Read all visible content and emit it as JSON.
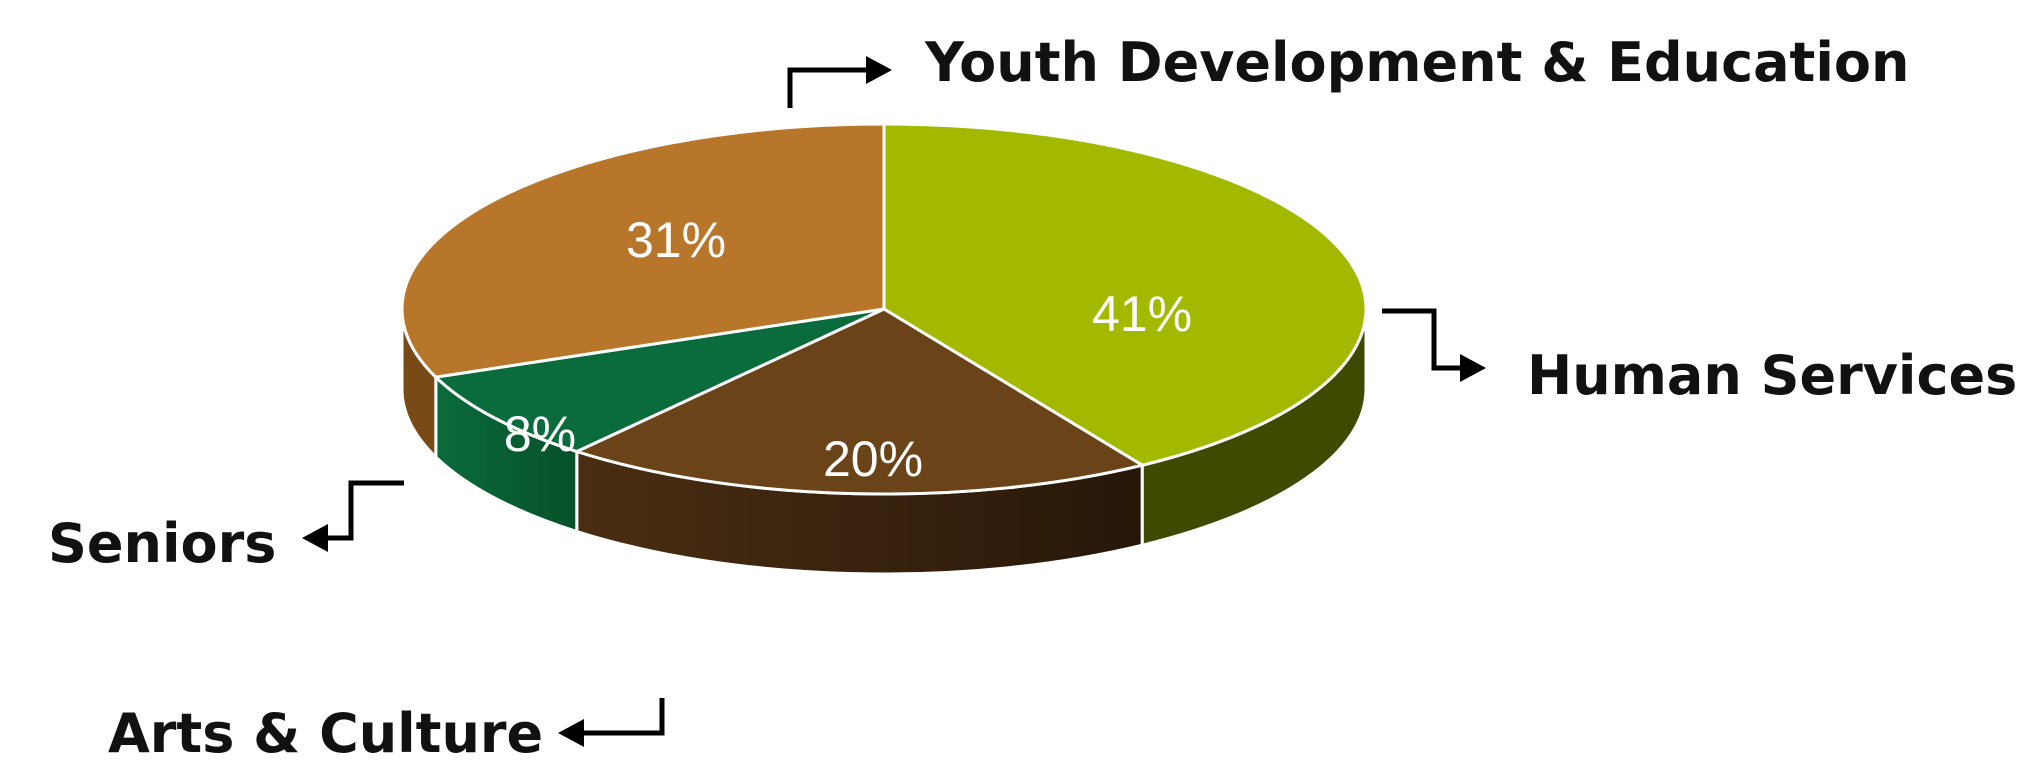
{
  "chart_data": {
    "type": "pie",
    "title": "",
    "categories": [
      "Human Services",
      "Arts & Culture",
      "Seniors",
      "Youth Development & Education"
    ],
    "values": [
      41,
      20,
      8,
      31
    ],
    "value_labels": [
      "41%",
      "20%",
      "8%",
      "31%"
    ],
    "colors": [
      "#a3b900",
      "#6b4319",
      "#0a6b3c",
      "#b8762b"
    ],
    "side_colors": [
      "#3e4a00",
      "#43290f",
      "#07542d",
      "#7a4a16"
    ],
    "style": "3d",
    "legend": "none"
  }
}
